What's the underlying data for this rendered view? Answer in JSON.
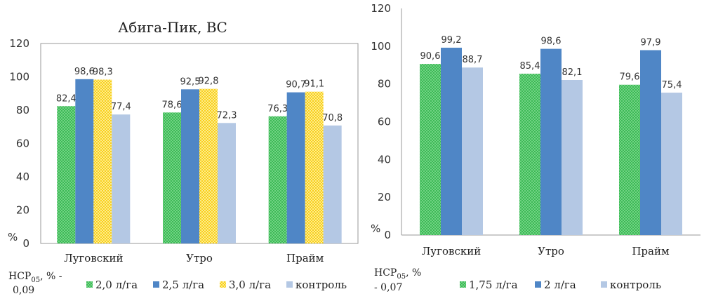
{
  "chart_data": [
    {
      "type": "bar",
      "title": "Абига-Пик, ВС",
      "unit": "%",
      "note_prefix": "НСР",
      "note_sub": "05",
      "note_line1_suffix": ", % -",
      "note_line2": "0,09",
      "categories": [
        "Луговский",
        "Утро",
        "Прайм"
      ],
      "ylim": [
        0,
        120
      ],
      "yticks": [
        "0",
        "20",
        "40",
        "60",
        "80",
        "100",
        "120"
      ],
      "series": [
        {
          "name": "2,0 л/га",
          "values": [
            82.4,
            78.6,
            76.3
          ],
          "labels": [
            "82,4",
            "78,6",
            "76,3"
          ],
          "color": "#2fb34a",
          "pattern": "green"
        },
        {
          "name": "2,5 л/га",
          "values": [
            98.6,
            92.5,
            90.7
          ],
          "labels": [
            "98,6",
            "92,5",
            "90,7"
          ],
          "color": "#4f86c6",
          "pattern": "blue"
        },
        {
          "name": "3,0 л/га",
          "values": [
            98.3,
            92.8,
            91.1
          ],
          "labels": [
            "98,3",
            "92,8",
            "91,1"
          ],
          "color": "#f5c400",
          "pattern": "yellow"
        },
        {
          "name": "контроль",
          "values": [
            77.4,
            72.3,
            70.8
          ],
          "labels": [
            "77,4",
            "72,3",
            "70,8"
          ],
          "color": "#b4c8e4",
          "pattern": "light"
        }
      ]
    },
    {
      "type": "bar",
      "title": "",
      "unit": "%",
      "note_prefix": "НСР",
      "note_sub": "05",
      "note_line1_suffix": ", %",
      "note_line2": "- 0,07",
      "categories": [
        "Луговский",
        "Утро",
        "Прайм"
      ],
      "ylim": [
        0,
        120
      ],
      "yticks": [
        "0",
        "20",
        "40",
        "60",
        "80",
        "100",
        "120"
      ],
      "series": [
        {
          "name": "1,75 л/га",
          "values": [
            90.6,
            85.4,
            79.6
          ],
          "labels": [
            "90,6",
            "85,4",
            "79,6"
          ],
          "color": "#2fb34a",
          "pattern": "green"
        },
        {
          "name": "2 л/га",
          "values": [
            99.2,
            98.6,
            97.9
          ],
          "labels": [
            "99,2",
            "98,6",
            "97,9"
          ],
          "color": "#4f86c6",
          "pattern": "blue"
        },
        {
          "name": "контроль",
          "values": [
            88.7,
            82.1,
            75.4
          ],
          "labels": [
            "88,7",
            "82,1",
            "75,4"
          ],
          "color": "#b4c8e4",
          "pattern": "light"
        }
      ]
    }
  ]
}
